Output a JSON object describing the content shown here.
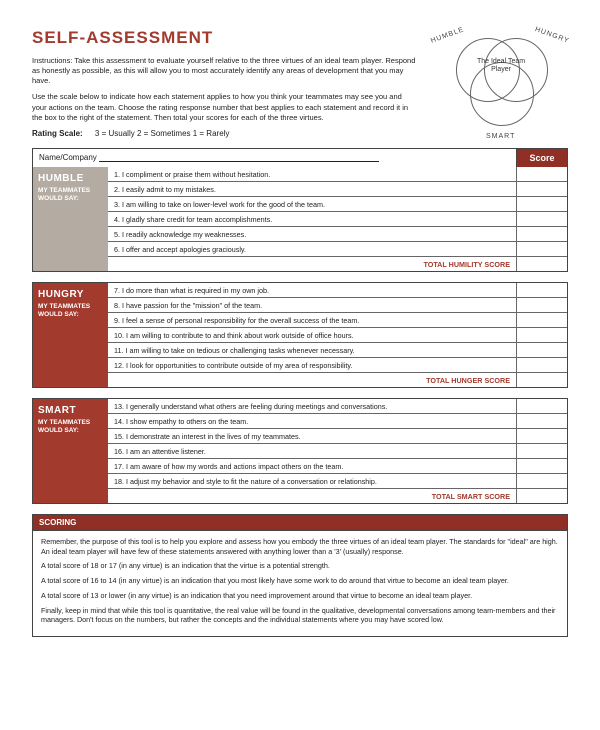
{
  "colors": {
    "accent": "#a23a2e",
    "title": "#a23a2e",
    "totalText": "#a23a2e",
    "humbleLabelBg": "#b4aca3",
    "hungryLabelBg": "#a23a2e",
    "smartLabelBg": "#a23a2e",
    "scoreHdrBg": "#8f2f25",
    "scoringHdrBg": "#8f2f25"
  },
  "title": "SELF-ASSESSMENT",
  "instructions1": "Instructions: Take this assessment to evaluate yourself relative to the three virtues of an ideal team player. Respond as honestly as possible, as this will allow you to most accurately identify any areas of development that you may have.",
  "instructions2": "Use the scale below to indicate how each statement applies to how you think your teammates may see you and your actions on the team. Choose the rating response number that best applies to each statement and record it in the box to the right of the statement. Then total your scores for each of the three virtues.",
  "ratingScaleLabel": "Rating Scale:",
  "ratingScaleValues": "3 = Usually    2 = Sometimes    1 = Rarely",
  "venn": {
    "l1": "HUMBLE",
    "l2": "HUNGRY",
    "l3": "SMART",
    "center": "The Ideal Team Player"
  },
  "nameLabel": "Name/Company",
  "scoreHeader": "Score",
  "teammatesWouldSay": "MY TEAMMATES WOULD SAY:",
  "virtues": [
    {
      "key": "humble",
      "name": "HUMBLE",
      "labelBgKey": "humbleLabelBg",
      "totalLabel": "TOTAL HUMILITY SCORE",
      "items": [
        "1.   I compliment or praise them without hesitation.",
        "2.   I easily admit to my mistakes.",
        "3.   I am willing to take on lower-level work for the good of the team.",
        "4.   I gladly share credit for team accomplishments.",
        "5.   I readily acknowledge my weaknesses.",
        "6.   I offer and accept apologies graciously."
      ]
    },
    {
      "key": "hungry",
      "name": "HUNGRY",
      "labelBgKey": "hungryLabelBg",
      "totalLabel": "TOTAL HUNGER SCORE",
      "items": [
        "7.   I do more than what is required in my own job.",
        "8.   I have passion for the \"mission\" of the team.",
        "9.   I feel a sense of personal responsibility for the overall success of the team.",
        "10.  I am willing to contribute to and think about work outside of office hours.",
        "11.  I am willing to take on tedious or challenging tasks whenever necessary.",
        "12.  I look for opportunities to contribute outside of my area of responsibility."
      ]
    },
    {
      "key": "smart",
      "name": "SMART",
      "labelBgKey": "smartLabelBg",
      "totalLabel": "TOTAL SMART SCORE",
      "items": [
        "13.  I generally understand what others are feeling during meetings and conversations.",
        "14.  I show empathy to others on the team.",
        "15.  I demonstrate an interest in the lives of my teammates.",
        "16.  I am an attentive listener.",
        "17.  I am aware of how my words and actions impact others on the team.",
        "18.  I adjust my behavior and style to fit the nature of a conversation or relationship."
      ]
    }
  ],
  "scoringHeader": "SCORING",
  "scoring": [
    "Remember, the purpose of this tool is to help you explore and assess how you embody the three virtues of an ideal team player. The standards for \"ideal\" are high. An ideal team player will have few of these statements answered with anything lower than a '3' (usually) response.",
    "A total score of 18 or 17 (in any virtue) is an indication that the virtue is a potential strength.",
    "A total score of 16 to 14 (in any virtue) is an indication that you most likely have some work to do around that virtue to become an ideal team player.",
    "A total score of 13 or lower (in any virtue) is an indication that you need improvement around that virtue to become an ideal team player.",
    "Finally, keep in mind that while this tool is quantitative, the real value will be found in the qualitative, developmental conversations among team-members and their managers. Don't focus on the numbers, but rather the concepts and the individual statements where you may have scored low."
  ]
}
